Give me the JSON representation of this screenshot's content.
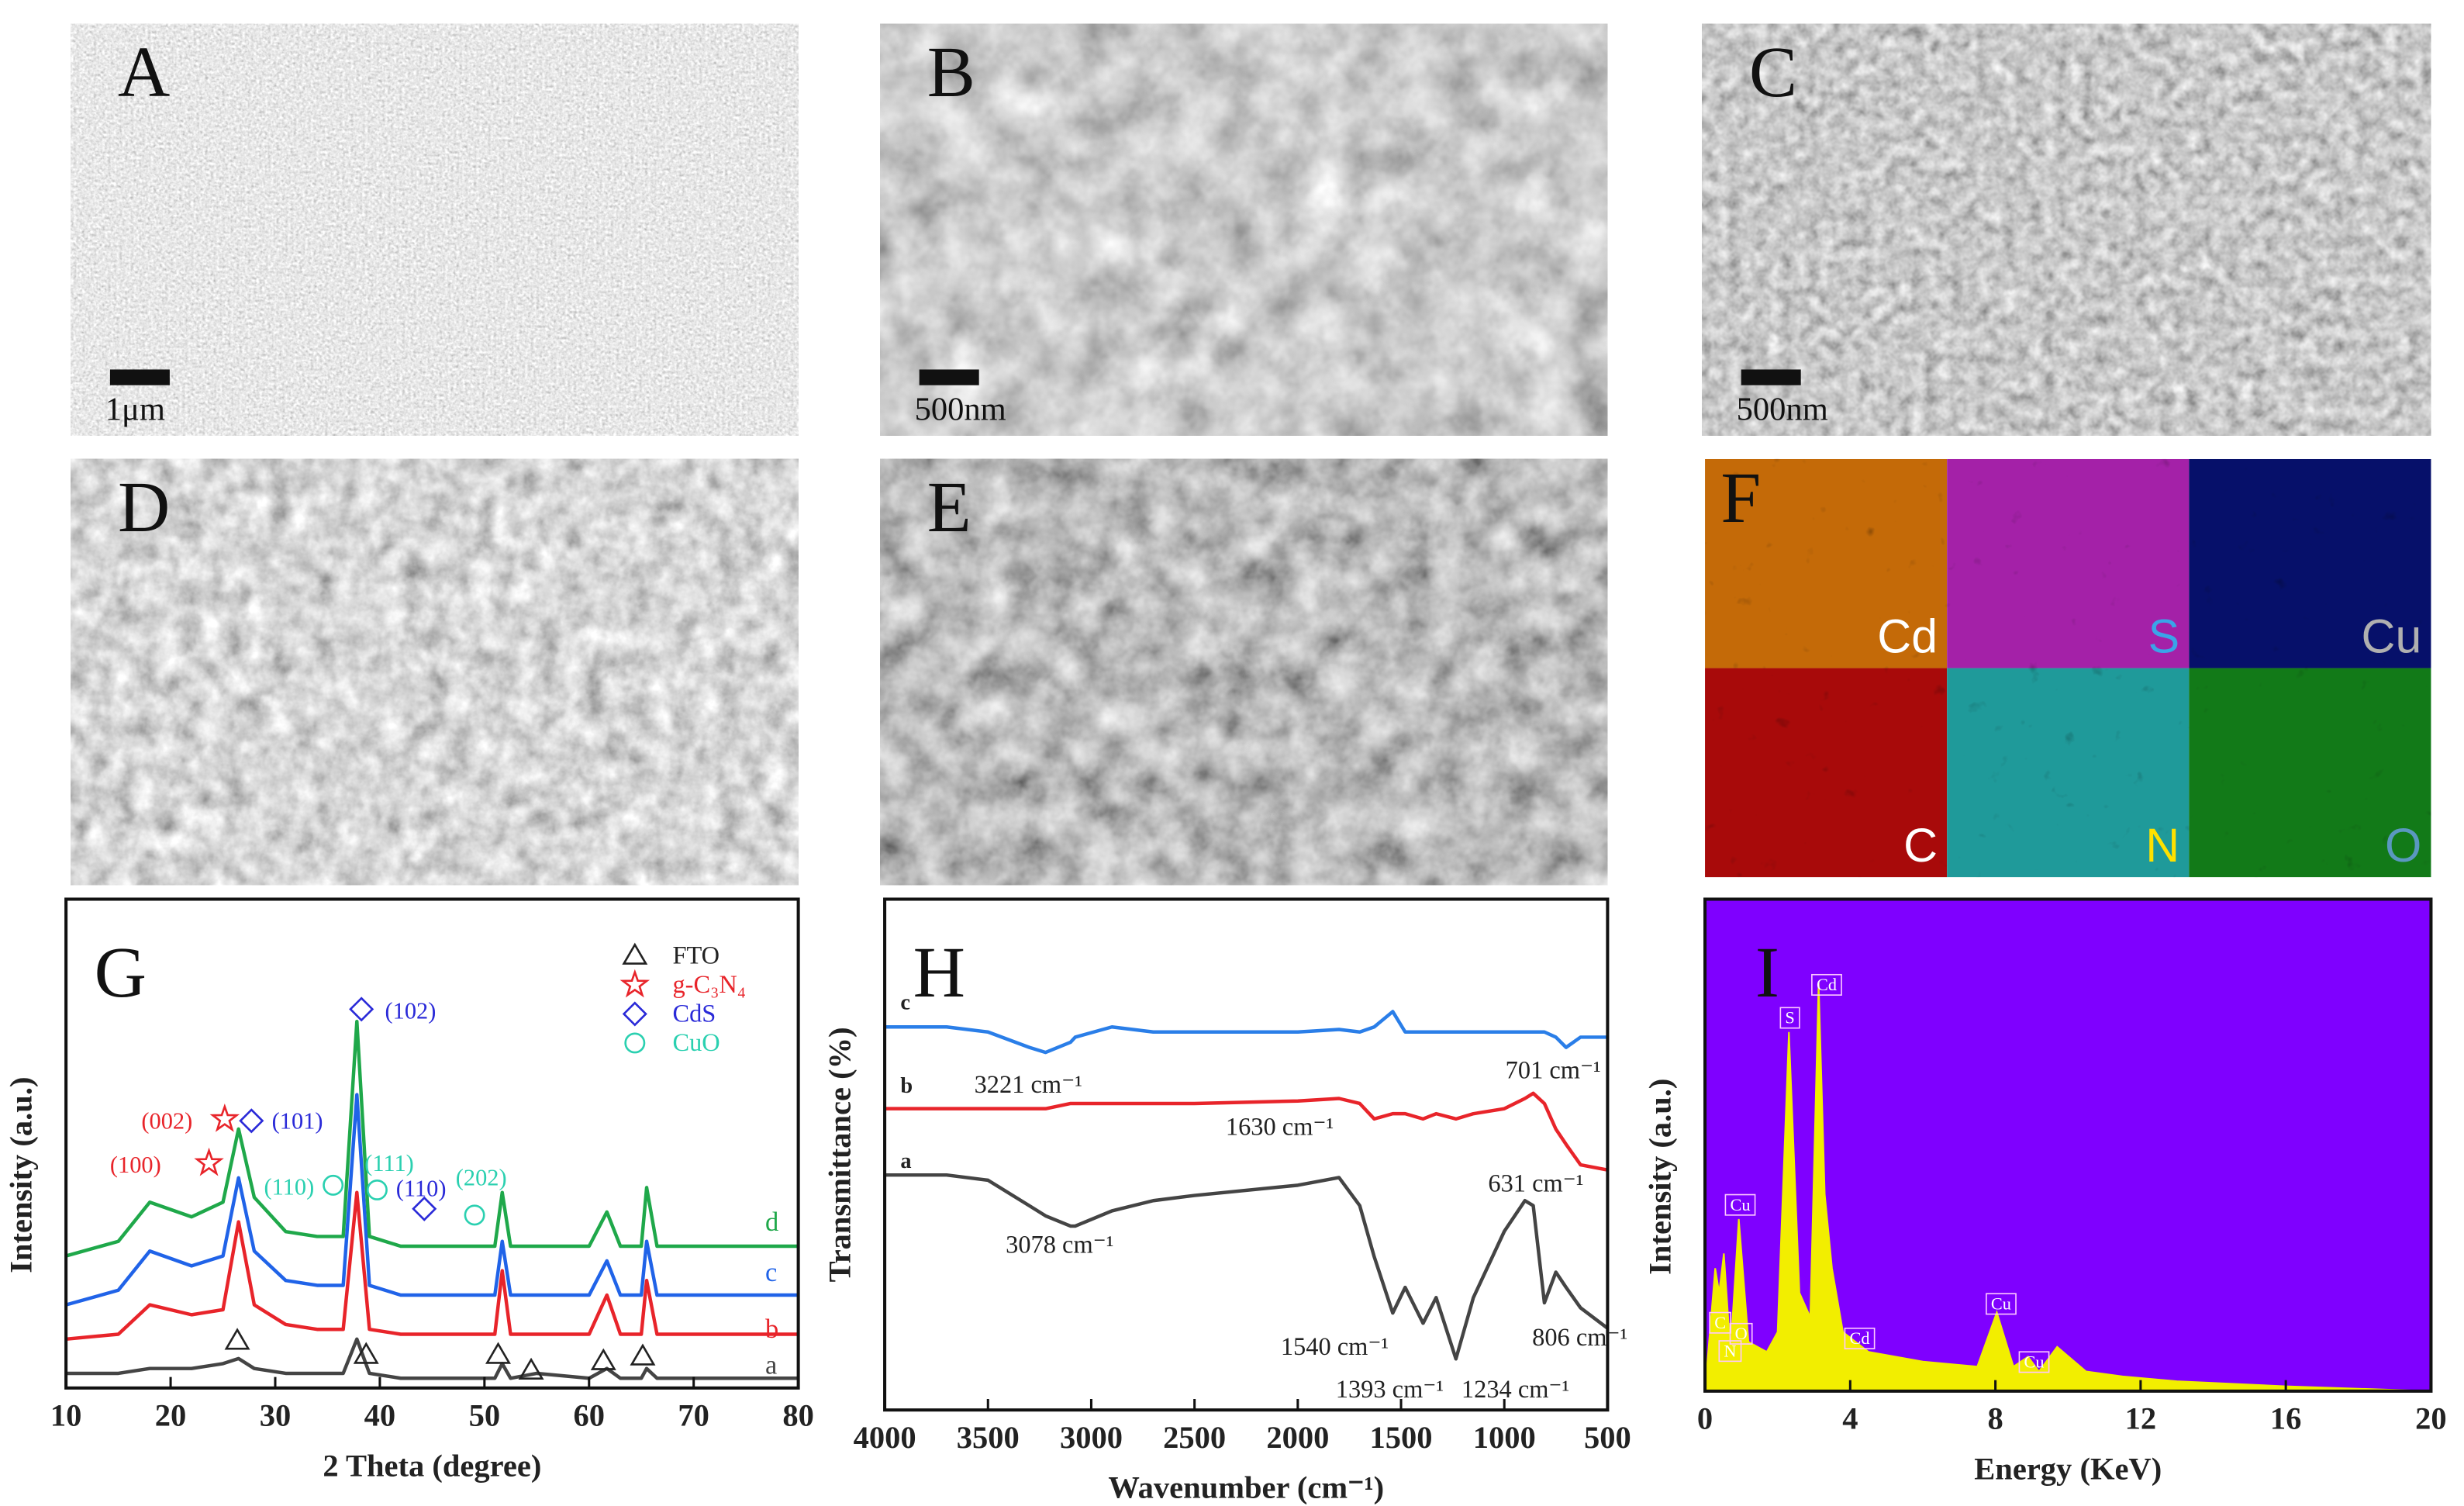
{
  "panels": [
    {
      "label": "A",
      "scale_bar": "1μm"
    },
    {
      "label": "B",
      "scale_bar": "500nm"
    },
    {
      "label": "C",
      "scale_bar": "500nm"
    },
    {
      "label": "D"
    },
    {
      "label": "E"
    }
  ],
  "mapping": {
    "label": "F",
    "elements": [
      {
        "name": "Cd",
        "color": "#c46a08",
        "label_color": "#ffffff"
      },
      {
        "name": "S",
        "color": "#a421a8",
        "label_color": "#3aa4e8"
      },
      {
        "name": "Cu",
        "color": "#06106a",
        "label_color": "#b0b0b0"
      },
      {
        "name": "C",
        "color": "#a80a0a",
        "label_color": "#ffffff"
      },
      {
        "name": "N",
        "color": "#1f9a9a",
        "label_color": "#ffe100"
      },
      {
        "name": "O",
        "color": "#127a18",
        "label_color": "#5a98c0"
      }
    ]
  },
  "chart_data": [
    {
      "type": "line",
      "panel": "G",
      "xlabel": "2 Theta (degree)",
      "ylabel": "Intensity (a.u.)",
      "x": [
        10,
        15,
        18,
        22,
        25,
        26.5,
        28,
        31,
        34,
        36.5,
        37.8,
        39,
        42,
        48,
        51,
        51.7,
        52.5,
        55,
        60,
        61.7,
        63,
        65,
        65.5,
        66.5,
        70,
        75,
        80
      ],
      "xlim": [
        10,
        80
      ],
      "xticks": [
        10,
        20,
        30,
        40,
        50,
        60,
        70,
        80
      ],
      "ylim": [
        0,
        100
      ],
      "series": [
        {
          "name": "a",
          "color": "#444444",
          "values": [
            3,
            3,
            4,
            4,
            5,
            6,
            4,
            3,
            3,
            3,
            10,
            3,
            2,
            2,
            2,
            5,
            2,
            3,
            2,
            4,
            2,
            2,
            4,
            2,
            2,
            2,
            2
          ]
        },
        {
          "name": "b",
          "color": "#e8242a",
          "values": [
            10,
            11,
            17,
            15,
            16,
            34,
            17,
            13,
            12,
            12,
            40,
            12,
            11,
            11,
            11,
            24,
            11,
            11,
            11,
            19,
            11,
            11,
            22,
            11,
            11,
            11,
            11
          ]
        },
        {
          "name": "c",
          "color": "#2063e8",
          "values": [
            17,
            20,
            28,
            25,
            27,
            43,
            28,
            22,
            21,
            21,
            60,
            21,
            19,
            19,
            19,
            30,
            19,
            19,
            19,
            26,
            19,
            19,
            30,
            19,
            19,
            19,
            19
          ]
        },
        {
          "name": "d",
          "color": "#1fa84a",
          "values": [
            27,
            30,
            38,
            35,
            38,
            53,
            39,
            32,
            31,
            31,
            75,
            31,
            29,
            29,
            29,
            40,
            29,
            29,
            29,
            36,
            29,
            29,
            41,
            29,
            29,
            29,
            29
          ]
        }
      ],
      "legend": [
        {
          "name": "FTO",
          "color": "#222222"
        },
        {
          "name": "g-C₃N₄",
          "color": "#e8242a"
        },
        {
          "name": "CdS",
          "color": "#2a2ad8"
        },
        {
          "name": "CuO",
          "color": "#2ad0b0"
        }
      ],
      "annotations": [
        {
          "text": "(100)",
          "color": "#e8242a"
        },
        {
          "text": "(002)",
          "color": "#e8242a"
        },
        {
          "text": "(101)",
          "color": "#2a2ad8"
        },
        {
          "text": "(102)",
          "color": "#2a2ad8"
        },
        {
          "text": "(110)",
          "color": "#2ad0b0"
        },
        {
          "text": "(111)",
          "color": "#2ad0b0"
        },
        {
          "text": "(110)",
          "color": "#2a2ad8"
        },
        {
          "text": "(202)",
          "color": "#2ad0b0"
        }
      ]
    },
    {
      "type": "line",
      "panel": "H",
      "xlabel": "Wavenumber (cm⁻¹)",
      "ylabel": "Transmittance (%)",
      "x": [
        4000,
        3700,
        3500,
        3300,
        3221,
        3100,
        3078,
        2900,
        2700,
        2500,
        2000,
        1800,
        1700,
        1630,
        1540,
        1480,
        1393,
        1330,
        1234,
        1150,
        1000,
        900,
        860,
        806,
        750,
        701,
        631,
        500
      ],
      "xlim": [
        4000,
        500
      ],
      "xticks": [
        4000,
        3500,
        3000,
        2500,
        2000,
        1500,
        1000,
        500
      ],
      "ylim": [
        0,
        100
      ],
      "series": [
        {
          "name": "a",
          "color": "#444444",
          "values": [
            46,
            46,
            45,
            40,
            38,
            36,
            36,
            39,
            41,
            42,
            44,
            45.5,
            40,
            30,
            19,
            24,
            17,
            22,
            10,
            22,
            35,
            41,
            40,
            21,
            27,
            24,
            20,
            16
          ]
        },
        {
          "name": "b",
          "color": "#e8242a",
          "values": [
            59,
            59,
            59,
            59,
            59,
            60,
            60,
            60,
            60,
            60,
            60.5,
            61,
            60,
            57,
            58,
            58,
            57,
            58,
            57,
            58,
            59,
            61,
            62,
            60,
            55,
            52,
            48,
            47
          ]
        },
        {
          "name": "c",
          "color": "#2a7ee8",
          "values": [
            75,
            75,
            74,
            71,
            70,
            72,
            73,
            75,
            74,
            74,
            74,
            74.5,
            74,
            75,
            78,
            74,
            74,
            74,
            74,
            74,
            74,
            74,
            74,
            74,
            73,
            71,
            73,
            73
          ]
        }
      ],
      "annotations": [
        "3221 cm⁻¹",
        "701 cm⁻¹",
        "1630 cm⁻¹",
        "631 cm⁻¹",
        "3078 cm⁻¹",
        "1540 cm⁻¹",
        "806 cm⁻¹",
        "1393 cm⁻¹",
        "1234 cm⁻¹"
      ]
    },
    {
      "type": "area",
      "panel": "I",
      "xlabel": "Energy (KeV)",
      "ylabel": "Intensity (a.u.)",
      "x": [
        0,
        0.28,
        0.39,
        0.52,
        0.7,
        0.93,
        1.2,
        1.7,
        2.0,
        2.31,
        2.6,
        2.9,
        3.13,
        3.3,
        3.5,
        3.8,
        4.5,
        6,
        7.5,
        8.04,
        8.5,
        8.9,
        9.2,
        9.7,
        10.5,
        11.5,
        13,
        16,
        20
      ],
      "xlim": [
        0,
        20
      ],
      "xticks": [
        0,
        4,
        8,
        12,
        16,
        20
      ],
      "ylim": [
        0,
        100
      ],
      "background": "#7f00ff",
      "series": [
        {
          "color": "#f2ee00",
          "values": [
            0,
            25,
            20,
            28,
            8,
            35,
            10,
            8,
            12,
            73,
            20,
            15,
            83,
            40,
            25,
            12,
            8,
            6,
            5,
            16,
            5,
            7,
            4,
            9,
            4,
            3,
            2,
            1,
            0
          ]
        }
      ],
      "peak_labels": [
        "Cd",
        "S",
        "Cu",
        "C",
        "N",
        "O",
        "Cd",
        "Cu",
        "Cu"
      ]
    }
  ]
}
